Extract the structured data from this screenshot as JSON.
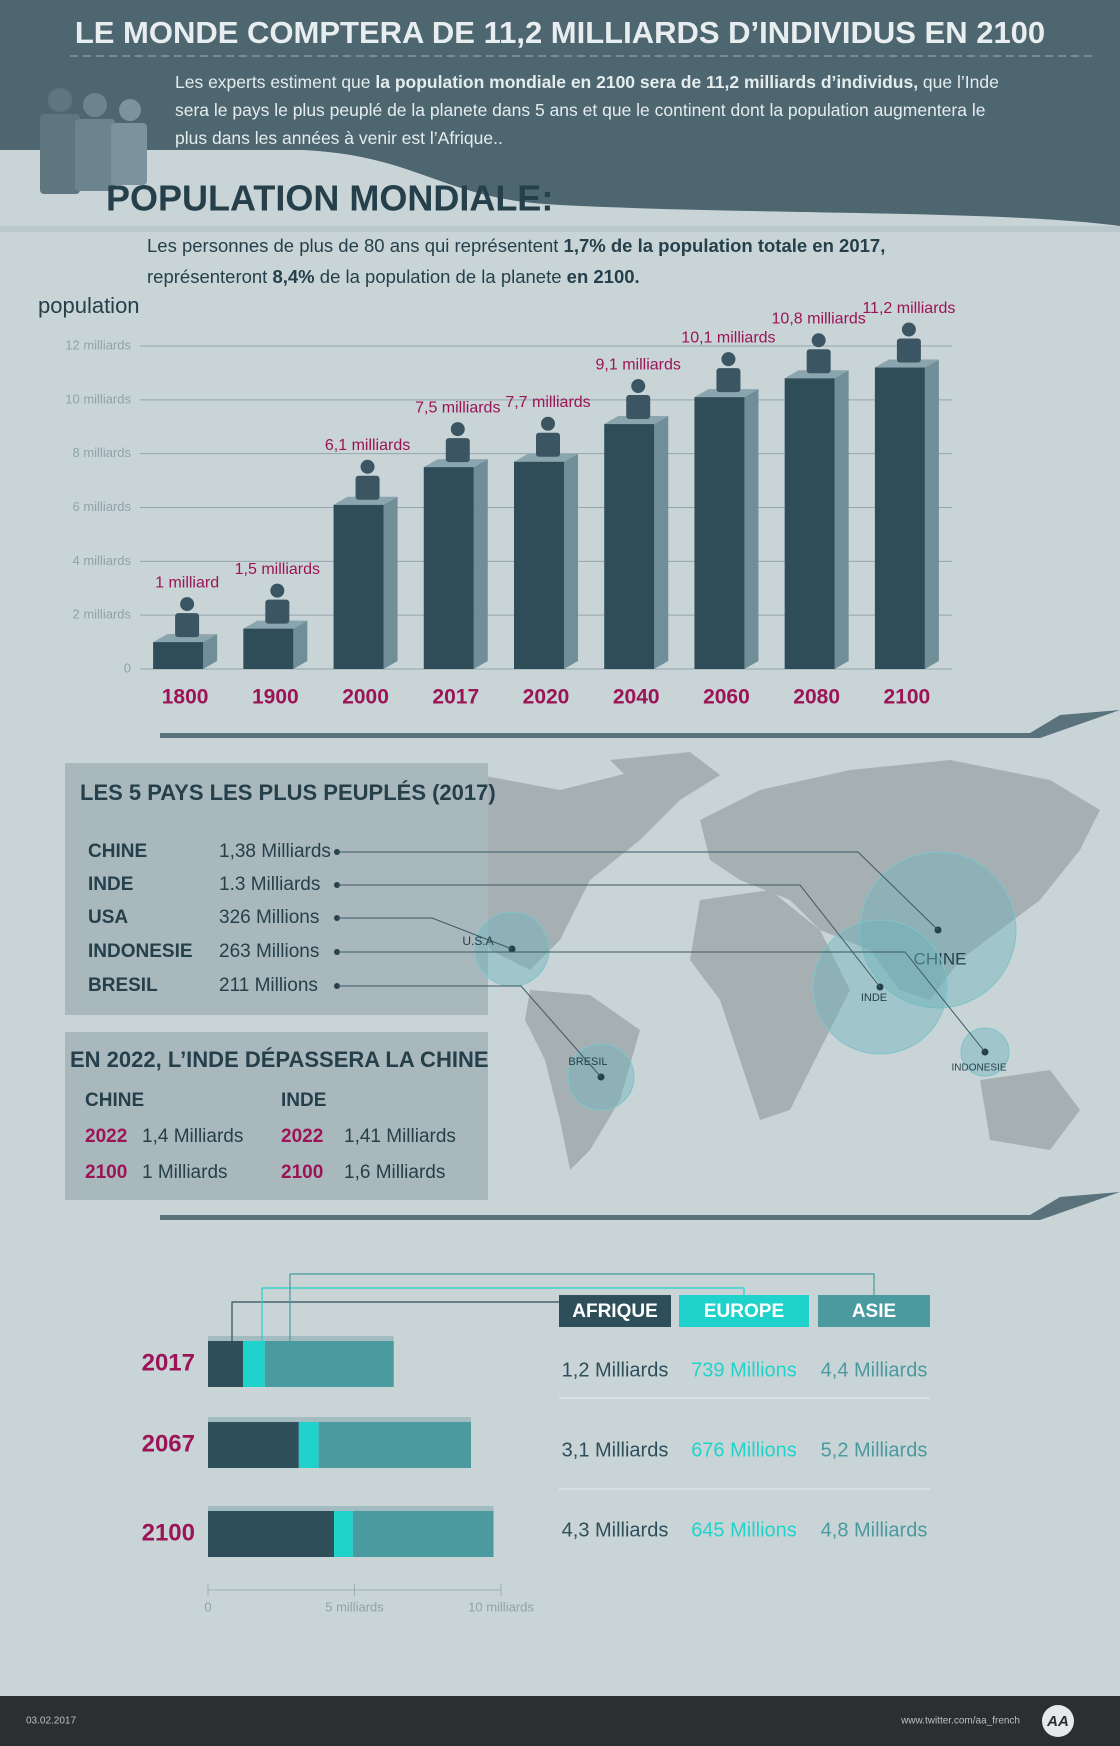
{
  "header": {
    "title": "LE MONDE COMPTERA DE 11,2 MILLIARDS D’INDIVIDUS EN 2100",
    "intro": [
      {
        "text": "Les experts estiment que ",
        "bold": false
      },
      {
        "text": "la population mondiale en 2100 sera de 11,2 milliards d’individus,",
        "bold": true
      },
      {
        "text": " que l’Inde sera le pays le plus peuplé de la planete dans 5 ans et que le continent dont la population augmentera le plus dans les années à venir est l’Afrique..",
        "bold": false
      }
    ]
  },
  "section_title": "POPULATION MONDIALE:",
  "chart_data": [
    {
      "type": "bar",
      "subtitle": [
        {
          "text": "Les personnes de plus de 80 ans qui représentent ",
          "bold": false
        },
        {
          "text": "1,7% de la population totale en 2017,",
          "bold": true
        },
        {
          "text": " représenteront ",
          "bold": false
        },
        {
          "text": "8,4%",
          "bold": true
        },
        {
          "text": " de la population de la planete ",
          "bold": false
        },
        {
          "text": "en 2100.",
          "bold": true
        }
      ],
      "y_label": "population",
      "categories": [
        "1800",
        "1900",
        "2000",
        "2017",
        "2020",
        "2040",
        "2060",
        "2080",
        "2100"
      ],
      "values": [
        1,
        1.5,
        6.1,
        7.5,
        7.7,
        9.1,
        10.1,
        10.8,
        11.2
      ],
      "value_labels": [
        "1 milliard",
        "1,5 milliards",
        "6,1 milliards",
        "7,5 milliards",
        "7,7 milliards",
        "9,1 milliards",
        "10,1 milliards",
        "10,8 milliards",
        "11,2 milliards"
      ],
      "color": "#2f4d58",
      "ylim": [
        0,
        12
      ],
      "yticks": [
        0,
        {
          "value": 2,
          "label": "2 milliards"
        },
        {
          "value": 4,
          "label": "4 milliards"
        },
        {
          "value": 6,
          "label": "6 milliards"
        },
        {
          "value": 8,
          "label": "8 milliards"
        },
        {
          "value": 10,
          "label": "10 milliards"
        },
        {
          "value": 12,
          "label": "12 milliards"
        }
      ],
      "grid": true
    },
    {
      "type": "stacked_hbar",
      "categories": [
        "2017",
        "2067",
        "2100"
      ],
      "series": [
        {
          "name": "AFRIQUE",
          "color": "#2e4f5a",
          "values": [
            1.2,
            3.1,
            4.3
          ],
          "value_labels": [
            "1,2 Milliards",
            "3,1 Milliards",
            "4,3 Milliards"
          ]
        },
        {
          "name": "EUROPE",
          "color": "#1fd3cc",
          "values": [
            0.739,
            0.676,
            0.645
          ],
          "value_labels": [
            "739 Millions",
            "676 Millions",
            "645 Millions"
          ]
        },
        {
          "name": "ASIE",
          "color": "#4a9aa0",
          "values": [
            4.4,
            5.2,
            4.8
          ],
          "value_labels": [
            "4,4 Milliards",
            "5,2 Milliards",
            "4,8 Milliards"
          ]
        }
      ],
      "xlim": [
        0,
        10
      ],
      "xticks": [
        0,
        {
          "value": 5,
          "label": "5 milliards"
        },
        {
          "value": 10,
          "label": "10 milliards"
        }
      ]
    }
  ],
  "top_countries": {
    "title": "LES 5 PAYS LES PLUS PEUPLÉS (2017)",
    "rows": [
      {
        "name": "CHINE",
        "value": "1,38 Milliards"
      },
      {
        "name": "INDE",
        "value": "1.3 Milliards"
      },
      {
        "name": "USA",
        "value": "326 Millions"
      },
      {
        "name": "INDONESIE",
        "value": "263 Millions"
      },
      {
        "name": "BRESIL",
        "value": "211 Millions"
      }
    ]
  },
  "map_labels": [
    "CHINE",
    "INDE",
    "U.S.A",
    "INDONESIE",
    "BRESIL"
  ],
  "forecast": {
    "title": "EN 2022, L’INDE DÉPASSERA LA CHINE",
    "columns": [
      {
        "name": "CHINE",
        "rows": [
          {
            "year": "2022",
            "value": "1,4 Milliards"
          },
          {
            "year": "2100",
            "value": "1 Milliards"
          }
        ]
      },
      {
        "name": "INDE",
        "rows": [
          {
            "year": "2022",
            "value": "1,41 Milliards"
          },
          {
            "year": "2100",
            "value": "1,6 Milliards"
          }
        ]
      }
    ]
  },
  "footer": {
    "date": "03.02.2017",
    "source": "www.twitter.com/aa_french",
    "logo": "AA"
  }
}
